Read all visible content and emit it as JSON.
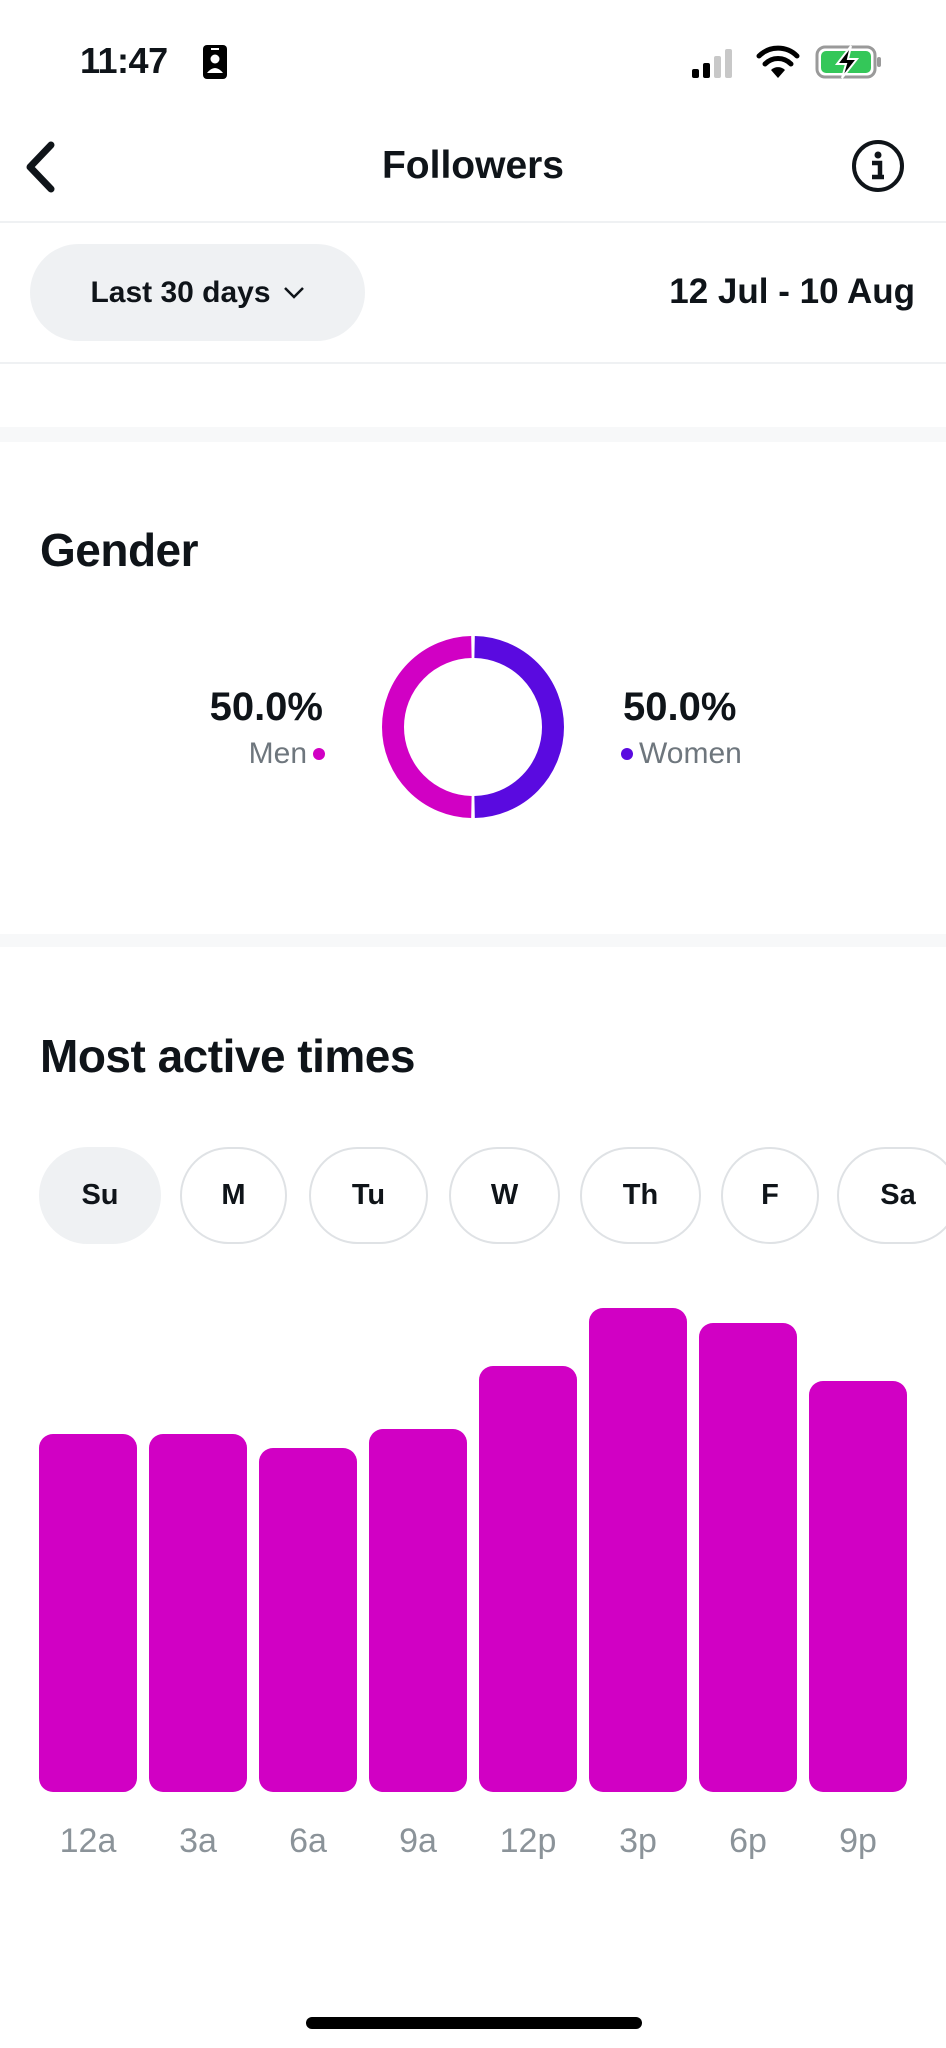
{
  "status_bar": {
    "time": "11:47",
    "icons": [
      "contact-card-icon",
      "signal-icon",
      "wifi-icon",
      "battery-charging-icon"
    ]
  },
  "nav": {
    "title": "Followers",
    "back_icon": "chevron-left-icon",
    "info_icon": "info-icon"
  },
  "filter": {
    "range_label": "Last 30 days",
    "date_range": "12 Jul - 10 Aug"
  },
  "gender": {
    "title": "Gender",
    "men": {
      "percent": "50.0%",
      "label": "Men",
      "color": "#d100c4",
      "value": 50.0
    },
    "women": {
      "percent": "50.0%",
      "label": "Women",
      "color": "#5a0ae0",
      "value": 50.0
    }
  },
  "active": {
    "title": "Most active times",
    "days": [
      "Su",
      "M",
      "Tu",
      "W",
      "Th",
      "F",
      "Sa"
    ],
    "selected_day": "Su"
  },
  "chart_data": {
    "type": "bar",
    "categories": [
      "12a",
      "3a",
      "6a",
      "9a",
      "12p",
      "3p",
      "6p",
      "9p"
    ],
    "values": [
      74,
      74,
      71,
      75,
      88,
      100,
      97,
      85
    ],
    "color": "#d100c4",
    "grid": false
  }
}
